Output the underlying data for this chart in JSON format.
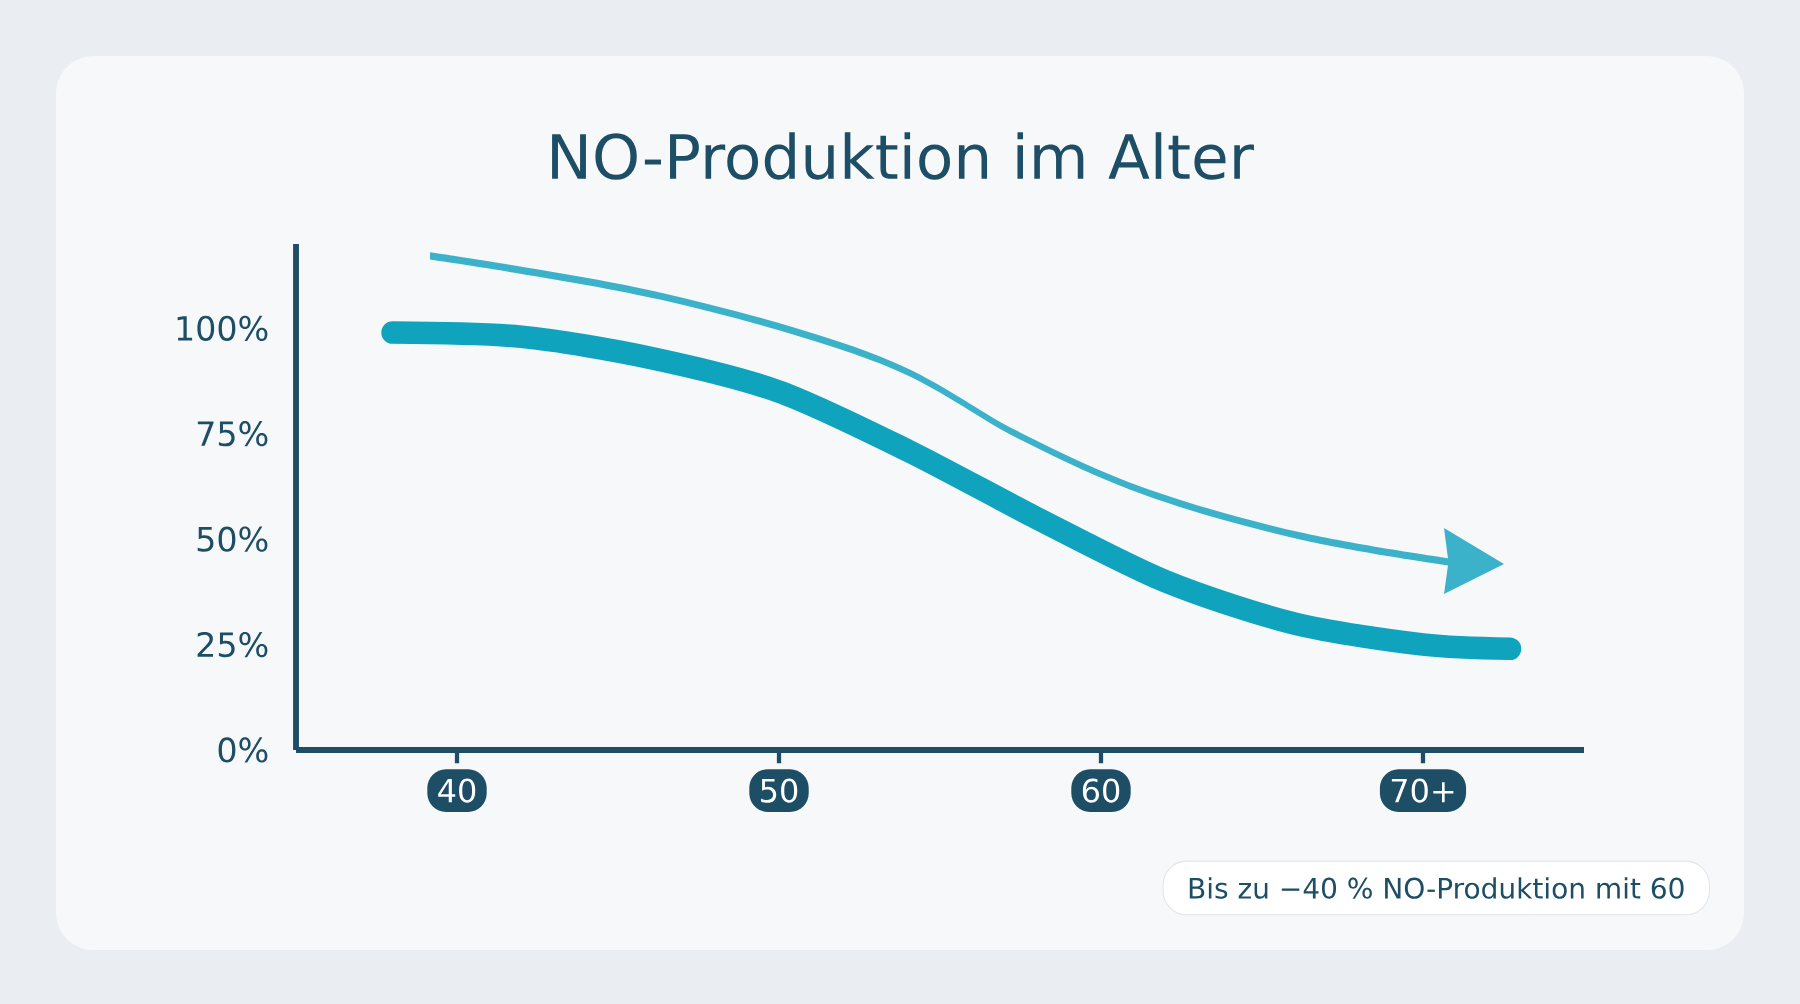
{
  "chart_data": {
    "type": "line",
    "title": "NO-Produktion im Alter",
    "x": [
      38,
      42,
      46,
      50,
      54,
      58,
      62,
      66,
      70,
      72.7
    ],
    "series": [
      {
        "color": "#0fa3be",
        "values": [
          99,
          98,
          93,
          85,
          71,
          55,
          40,
          30,
          25,
          24
        ]
      }
    ],
    "xlim": [
      35,
      75
    ],
    "ylim": [
      0,
      120
    ],
    "xticks": [
      40,
      50,
      60,
      {
        "value": 70,
        "label": "70+"
      }
    ],
    "yticks": [
      {
        "value": 0,
        "label": "0%"
      },
      {
        "value": 25,
        "label": "25%"
      },
      {
        "value": 50,
        "label": "50%"
      },
      {
        "value": 75,
        "label": "75%"
      },
      {
        "value": 100,
        "label": "100%"
      }
    ],
    "marker": "none",
    "line_style": "solid",
    "grid": false,
    "legend": false,
    "annotations": [
      "Bis zu −40 % NO-Produktion mit 60"
    ]
  }
}
